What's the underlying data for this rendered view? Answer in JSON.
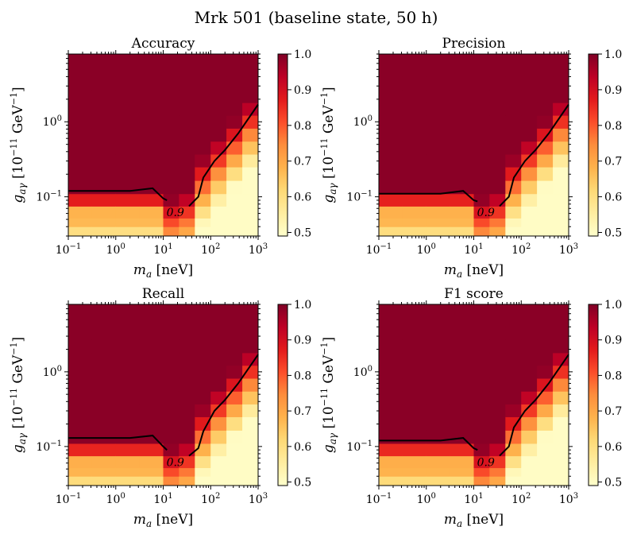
{
  "figure": {
    "title": "Mrk 501 (baseline state, 50 h)"
  },
  "chart_data": [
    {
      "id": "accuracy",
      "type": "heatmap",
      "title": "Accuracy",
      "xlabel": "m_a [neV]",
      "ylabel": "g_aγ [10^-11 GeV^-1]",
      "xscale": "log",
      "yscale": "log",
      "xlim": [
        0.1,
        1000
      ],
      "ylim": [
        0.03,
        8
      ],
      "x_ticks": [
        0.1,
        1,
        10,
        100,
        1000
      ],
      "y_ticks": [
        0.1,
        1
      ],
      "colorbar": {
        "min": 0.49,
        "max": 1.0,
        "ticks": [
          0.5,
          0.6,
          0.7,
          0.8,
          0.9,
          1.0
        ],
        "colormap": "YlOrRd"
      },
      "contour": {
        "level": 0.9,
        "label": "0.9",
        "points": [
          [
            0.1,
            0.12
          ],
          [
            0.5,
            0.12
          ],
          [
            2,
            0.12
          ],
          [
            6,
            0.13
          ],
          [
            10,
            0.095
          ],
          [
            12,
            0.09
          ]
        ],
        "points_right": [
          [
            35,
            0.075
          ],
          [
            55,
            0.1
          ],
          [
            70,
            0.18
          ],
          [
            120,
            0.3
          ],
          [
            200,
            0.42
          ],
          [
            380,
            0.7
          ],
          [
            1000,
            1.7
          ]
        ]
      }
    },
    {
      "id": "precision",
      "type": "heatmap",
      "title": "Precision",
      "xlabel": "m_a [neV]",
      "ylabel": "g_aγ [10^-11 GeV^-1]",
      "xscale": "log",
      "yscale": "log",
      "xlim": [
        0.1,
        1000
      ],
      "ylim": [
        0.03,
        8
      ],
      "x_ticks": [
        0.1,
        1,
        10,
        100,
        1000
      ],
      "y_ticks": [
        0.1,
        1
      ],
      "colorbar": {
        "min": 0.49,
        "max": 1.0,
        "ticks": [
          0.5,
          0.6,
          0.7,
          0.8,
          0.9,
          1.0
        ],
        "colormap": "YlOrRd"
      },
      "contour": {
        "level": 0.9,
        "label": "0.9",
        "points": [
          [
            0.1,
            0.11
          ],
          [
            0.5,
            0.11
          ],
          [
            2,
            0.11
          ],
          [
            6,
            0.12
          ],
          [
            10,
            0.09
          ],
          [
            12,
            0.087
          ]
        ],
        "points_right": [
          [
            35,
            0.075
          ],
          [
            55,
            0.1
          ],
          [
            70,
            0.18
          ],
          [
            120,
            0.3
          ],
          [
            200,
            0.42
          ],
          [
            380,
            0.7
          ],
          [
            1000,
            1.7
          ]
        ]
      }
    },
    {
      "id": "recall",
      "type": "heatmap",
      "title": "Recall",
      "xlabel": "m_a [neV]",
      "ylabel": "g_aγ [10^-11 GeV^-1]",
      "xscale": "log",
      "yscale": "log",
      "xlim": [
        0.1,
        1000
      ],
      "ylim": [
        0.03,
        8
      ],
      "x_ticks": [
        0.1,
        1,
        10,
        100,
        1000
      ],
      "y_ticks": [
        0.1,
        1
      ],
      "colorbar": {
        "min": 0.49,
        "max": 1.0,
        "ticks": [
          0.5,
          0.6,
          0.7,
          0.8,
          0.9,
          1.0
        ],
        "colormap": "YlOrRd"
      },
      "contour": {
        "level": 0.9,
        "label": "0.9",
        "points": [
          [
            0.1,
            0.13
          ],
          [
            0.5,
            0.13
          ],
          [
            2,
            0.13
          ],
          [
            6,
            0.14
          ],
          [
            10,
            0.1
          ],
          [
            12,
            0.09
          ]
        ],
        "points_right": [
          [
            35,
            0.075
          ],
          [
            55,
            0.095
          ],
          [
            70,
            0.16
          ],
          [
            120,
            0.3
          ],
          [
            200,
            0.42
          ],
          [
            380,
            0.7
          ],
          [
            1000,
            1.7
          ]
        ]
      }
    },
    {
      "id": "f1",
      "type": "heatmap",
      "title": "F1 score",
      "xlabel": "m_a [neV]",
      "ylabel": "g_aγ [10^-11 GeV^-1]",
      "xscale": "log",
      "yscale": "log",
      "xlim": [
        0.1,
        1000
      ],
      "ylim": [
        0.03,
        8
      ],
      "x_ticks": [
        0.1,
        1,
        10,
        100,
        1000
      ],
      "y_ticks": [
        0.1,
        1
      ],
      "colorbar": {
        "min": 0.49,
        "max": 1.0,
        "ticks": [
          0.5,
          0.6,
          0.7,
          0.8,
          0.9,
          1.0
        ],
        "colormap": "YlOrRd"
      },
      "contour": {
        "level": 0.9,
        "label": "0.9",
        "points": [
          [
            0.1,
            0.12
          ],
          [
            0.5,
            0.12
          ],
          [
            2,
            0.12
          ],
          [
            6,
            0.13
          ],
          [
            10,
            0.095
          ],
          [
            12,
            0.09
          ]
        ],
        "points_right": [
          [
            35,
            0.075
          ],
          [
            55,
            0.1
          ],
          [
            70,
            0.18
          ],
          [
            120,
            0.3
          ],
          [
            200,
            0.42
          ],
          [
            380,
            0.7
          ],
          [
            1000,
            1.7
          ]
        ]
      }
    }
  ]
}
